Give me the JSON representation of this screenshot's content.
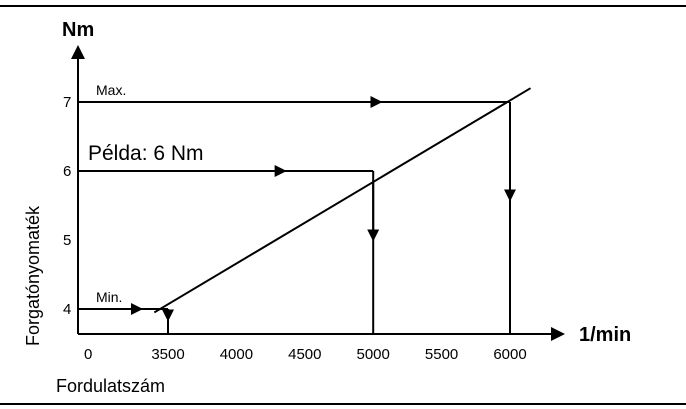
{
  "chart_data": {
    "type": "line",
    "title": "",
    "x": {
      "label": "Fordulatszám",
      "unit": "1/min",
      "origin_label": "0",
      "ticks": [
        3500,
        4000,
        4500,
        5000,
        5500,
        6000
      ]
    },
    "y": {
      "label": "Forgatónyomaték",
      "unit": "Nm",
      "ticks": [
        4,
        5,
        6,
        7
      ]
    },
    "series": [
      {
        "x": [
          3400,
          6150
        ],
        "y": [
          3.95,
          7.2
        ]
      }
    ],
    "guides": [
      {
        "label": "Max.",
        "torque": 7,
        "speed": 6000,
        "label_size": "small"
      },
      {
        "label": "Példa: 6 Nm",
        "torque": 6,
        "speed": 5000,
        "label_size": "large"
      },
      {
        "label": "Min.",
        "torque": 4,
        "speed": 3500,
        "label_size": "small"
      }
    ],
    "grid": false,
    "legend": "none"
  }
}
